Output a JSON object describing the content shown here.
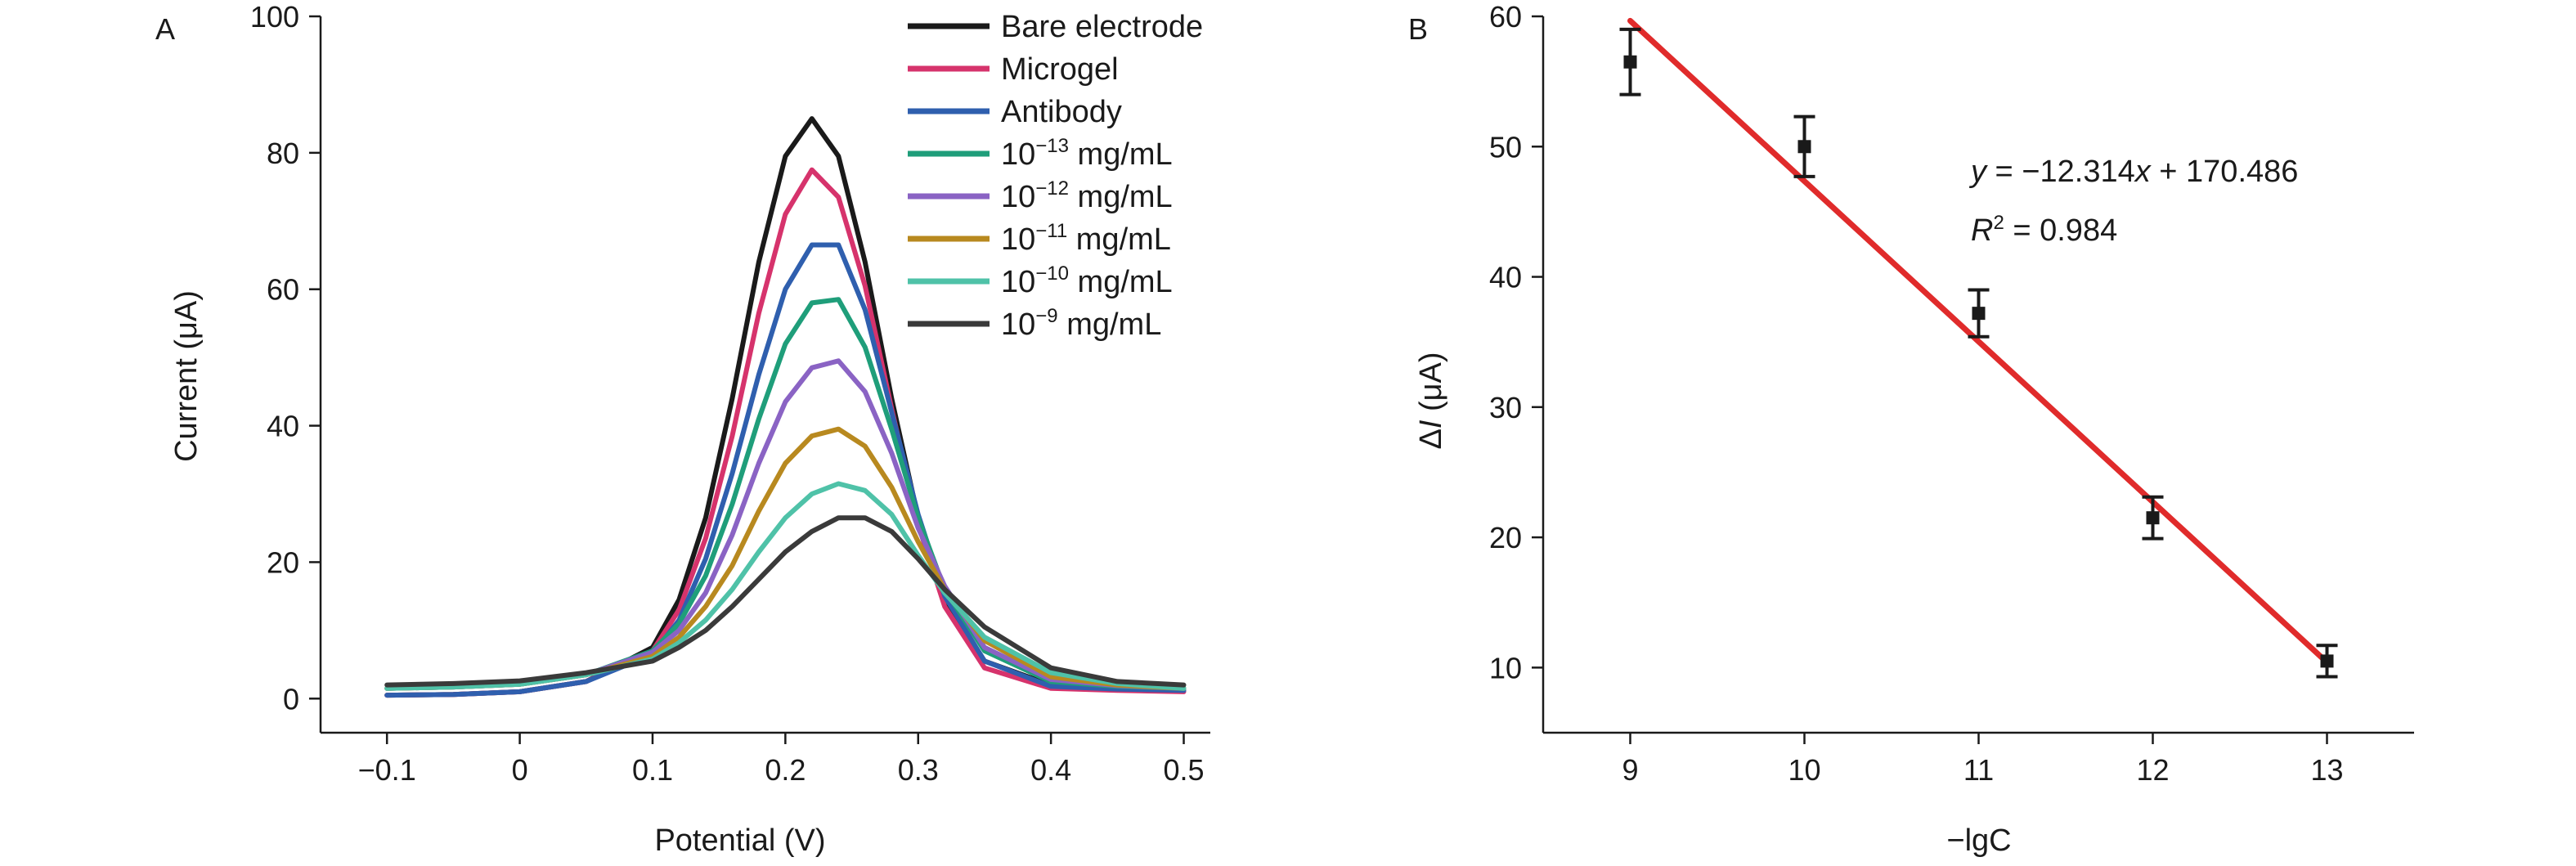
{
  "panel_a_label": "A",
  "panel_b_label": "B",
  "chart_data": [
    {
      "type": "line",
      "panel": "A",
      "xlabel": "Potential (V)",
      "ylabel": "Current (μA)",
      "xlim": [
        -0.15,
        0.52
      ],
      "ylim": [
        -5,
        100
      ],
      "xticks": [
        "−0.1",
        "0",
        "0.1",
        "0.2",
        "0.3",
        "0.4",
        "0.5"
      ],
      "xtick_values": [
        -0.1,
        0,
        0.1,
        0.2,
        0.3,
        0.4,
        0.5
      ],
      "yticks": [
        "0",
        "20",
        "40",
        "60",
        "80",
        "100"
      ],
      "ytick_values": [
        0,
        20,
        40,
        60,
        80,
        100
      ],
      "grid": false,
      "legend_position": "top-right",
      "x": [
        -0.1,
        -0.05,
        0,
        0.05,
        0.1,
        0.12,
        0.14,
        0.16,
        0.18,
        0.2,
        0.22,
        0.24,
        0.26,
        0.28,
        0.3,
        0.32,
        0.35,
        0.4,
        0.45,
        0.5
      ],
      "series": [
        {
          "name": "Bare electrode",
          "color": "#1a1a1a",
          "values": [
            0.5,
            0.6,
            1.0,
            2.5,
            7.5,
            14.5,
            26.5,
            44.0,
            64.0,
            79.5,
            85.0,
            79.5,
            64.0,
            44.0,
            26.5,
            14.5,
            5.5,
            2.0,
            1.6,
            1.5
          ]
        },
        {
          "name": "Microgel",
          "color": "#d6336c",
          "values": [
            0.5,
            0.6,
            1.0,
            2.5,
            7.0,
            13.0,
            23.5,
            38.5,
            56.5,
            71.0,
            77.5,
            73.5,
            60.5,
            42.5,
            25.5,
            13.5,
            4.5,
            1.5,
            1.2,
            1.0
          ]
        },
        {
          "name": "Antibody",
          "color": "#2f5fae",
          "values": [
            0.5,
            0.6,
            1.0,
            2.5,
            6.5,
            11.5,
            20.5,
            33.0,
            47.5,
            60.0,
            66.5,
            66.5,
            57.0,
            42.0,
            27.0,
            15.0,
            5.5,
            1.8,
            1.4,
            1.2
          ]
        },
        {
          "name": "10⁻¹³ mg/mL",
          "color": "#1f9e7a",
          "values": [
            1.5,
            1.7,
            2.1,
            3.5,
            7.0,
            11.0,
            18.0,
            28.5,
            41.0,
            52.0,
            58.0,
            58.5,
            51.5,
            39.5,
            26.5,
            16.0,
            7.0,
            2.5,
            1.8,
            1.5
          ]
        },
        {
          "name": "10⁻¹² mg/mL",
          "color": "#8a63c4",
          "values": [
            1.5,
            1.7,
            2.1,
            3.5,
            6.8,
            10.0,
            15.5,
            24.0,
            34.5,
            43.5,
            48.5,
            49.5,
            45.0,
            36.0,
            25.0,
            16.5,
            7.5,
            2.8,
            1.9,
            1.5
          ]
        },
        {
          "name": "10⁻¹¹ mg/mL",
          "color": "#b8891f",
          "values": [
            1.5,
            1.7,
            2.1,
            3.5,
            6.2,
            9.0,
            13.5,
            19.5,
            27.5,
            34.5,
            38.5,
            39.5,
            37.0,
            31.0,
            23.0,
            16.0,
            8.5,
            3.2,
            2.0,
            1.5
          ]
        },
        {
          "name": "10⁻¹⁰ mg/mL",
          "color": "#4fc2a8",
          "values": [
            1.5,
            1.7,
            2.1,
            3.5,
            5.8,
            8.2,
            11.5,
            16.0,
            21.5,
            26.5,
            30.0,
            31.5,
            30.5,
            27.0,
            21.0,
            15.5,
            9.0,
            3.8,
            2.2,
            1.5
          ]
        },
        {
          "name": "10⁻⁹ mg/mL",
          "color": "#3a3a3a",
          "values": [
            2.0,
            2.2,
            2.6,
            3.8,
            5.5,
            7.5,
            10.0,
            13.5,
            17.5,
            21.5,
            24.5,
            26.5,
            26.5,
            24.5,
            20.5,
            16.0,
            10.5,
            4.5,
            2.5,
            2.0
          ]
        }
      ],
      "legend_labels": [
        {
          "base": "Bare electrode",
          "exp": "",
          "unit": ""
        },
        {
          "base": "Microgel",
          "exp": "",
          "unit": ""
        },
        {
          "base": "Antibody",
          "exp": "",
          "unit": ""
        },
        {
          "base": "10",
          "exp": "−13",
          "unit": " mg/mL"
        },
        {
          "base": "10",
          "exp": "−12",
          "unit": " mg/mL"
        },
        {
          "base": "10",
          "exp": "−11",
          "unit": " mg/mL"
        },
        {
          "base": "10",
          "exp": "−10",
          "unit": " mg/mL"
        },
        {
          "base": "10",
          "exp": "−9",
          "unit": " mg/mL"
        }
      ]
    },
    {
      "type": "scatter",
      "panel": "B",
      "xlabel": "−lgC",
      "ylabel_prefix": "Δ",
      "ylabel_var": "I",
      "ylabel_unit": " (μA)",
      "xlim": [
        8.5,
        13.5
      ],
      "ylim": [
        5,
        60
      ],
      "xticks": [
        "9",
        "10",
        "11",
        "12",
        "13"
      ],
      "xtick_values": [
        9,
        10,
        11,
        12,
        13
      ],
      "yticks": [
        "10",
        "20",
        "30",
        "40",
        "50",
        "60"
      ],
      "ytick_values": [
        10,
        20,
        30,
        40,
        50,
        60
      ],
      "grid": false,
      "x": [
        9,
        10,
        11,
        12,
        13
      ],
      "y": [
        56.5,
        50.0,
        37.2,
        21.5,
        10.5
      ],
      "error": [
        2.5,
        2.3,
        1.8,
        1.6,
        1.2
      ],
      "point_color": "#1a1a1a",
      "fit": {
        "slope": -12.314,
        "intercept": 170.486,
        "x_range": [
          9,
          13
        ],
        "color": "#e02b2b"
      },
      "equation_lead": "y",
      "equation_rest": " = −12.314",
      "equation_var": "x",
      "equation_tail": " + 170.486",
      "r2_var": "R",
      "r2_exp": "2",
      "r2_value": " = 0.984"
    }
  ]
}
